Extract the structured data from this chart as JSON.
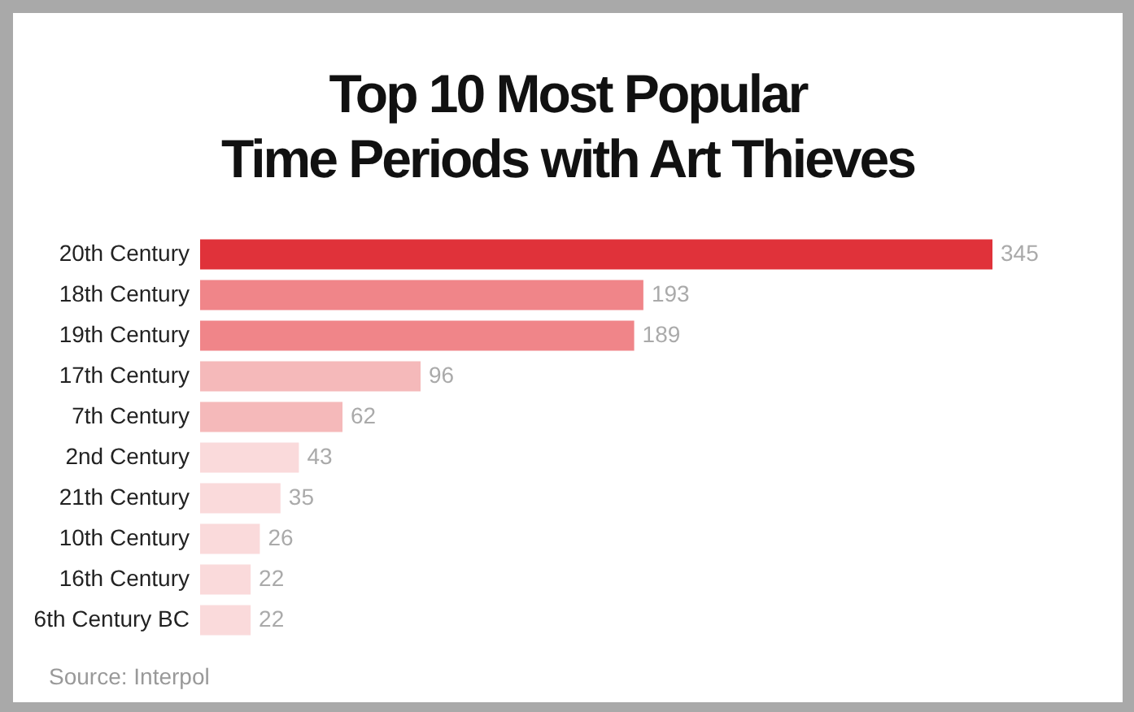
{
  "chart_data": {
    "type": "bar",
    "orientation": "horizontal",
    "title": "Top 10 Most Popular\nTime Periods with Art Thieves",
    "categories": [
      "20th Century",
      "18th Century",
      "19th Century",
      "17th Century",
      "7th Century",
      "2nd Century",
      "21th Century",
      "10th Century",
      "16th Century",
      "6th Century BC"
    ],
    "values": [
      345,
      193,
      189,
      96,
      62,
      43,
      35,
      26,
      22,
      22
    ],
    "colors": [
      "#e0323a",
      "#f08589",
      "#f08589",
      "#f5b9ba",
      "#f5b9ba",
      "#fadadb",
      "#fadadb",
      "#fadadb",
      "#fadadb",
      "#fadadb"
    ],
    "data_labels": true,
    "annotations": [
      "Source: Interpol"
    ]
  }
}
